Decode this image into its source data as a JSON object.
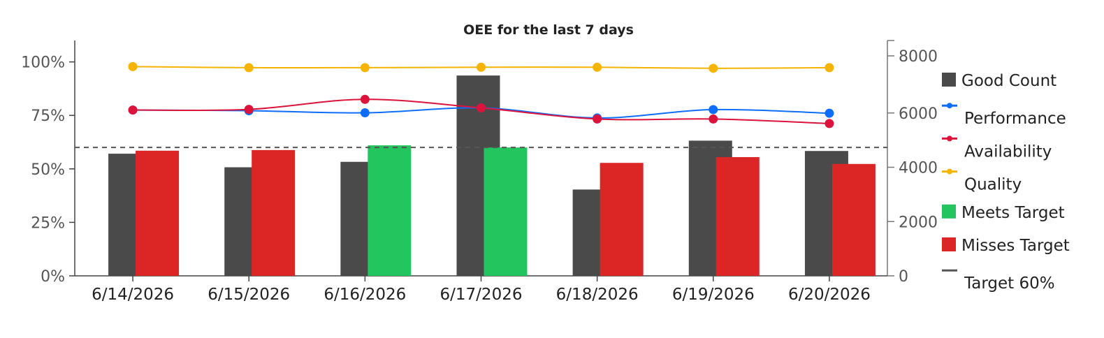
{
  "chart_data": {
    "type": "bar",
    "title": "OEE for the last 7 days",
    "categories": [
      "6/14/2026",
      "6/15/2026",
      "6/16/2026",
      "6/17/2026",
      "6/18/2026",
      "6/19/2026",
      "6/20/2026"
    ],
    "y_left": {
      "ticks": [
        "0%",
        "25%",
        "50%",
        "75%",
        "100%"
      ],
      "range": [
        0,
        110
      ]
    },
    "y_right": {
      "ticks": [
        "0",
        "2000",
        "4000",
        "6000",
        "8000"
      ],
      "range": [
        0,
        8000
      ]
    },
    "good_count": {
      "name": "Good Count",
      "color": "#4a4a4a",
      "axis": "right",
      "values": [
        4500,
        4000,
        4200,
        7380,
        3180,
        4980,
        4600
      ]
    },
    "oee": {
      "axis": "left",
      "values": [
        58.5,
        58.8,
        61,
        60,
        52.8,
        55.5,
        52.3
      ],
      "target": 60,
      "meets_color": "#22c55e",
      "misses_color": "#dc2626"
    },
    "lines": [
      {
        "name": "Performance",
        "color": "#0d6efd",
        "axis": "left",
        "values": [
          77.5,
          77.2,
          76.2,
          78.5,
          73.8,
          77.7,
          76
        ]
      },
      {
        "name": "Availability",
        "color": "#dc143c",
        "axis": "left",
        "values": [
          77.5,
          77.8,
          82.5,
          78.5,
          73.3,
          73.3,
          71.2
        ]
      },
      {
        "name": "Quality",
        "color": "#f5b400",
        "axis": "left",
        "values": [
          97.8,
          97.3,
          97.3,
          97.5,
          97.5,
          97,
          97.3
        ]
      }
    ],
    "target_line": {
      "name": "Target 60%",
      "value": 60,
      "color": "#555555"
    },
    "legend": {
      "placement": "right",
      "items": [
        {
          "label": "Good Count",
          "kind": "box",
          "color": "#4a4a4a"
        },
        {
          "label": "Performance",
          "kind": "line",
          "color": "#0d6efd"
        },
        {
          "label": "Availability",
          "kind": "line",
          "color": "#dc143c"
        },
        {
          "label": "Quality",
          "kind": "line",
          "color": "#f5b400"
        },
        {
          "label": "Meets Target",
          "kind": "box",
          "color": "#22c55e"
        },
        {
          "label": "Misses Target",
          "kind": "box",
          "color": "#dc2626"
        },
        {
          "label": "Target 60%",
          "kind": "line",
          "color": "#555555"
        }
      ]
    }
  }
}
